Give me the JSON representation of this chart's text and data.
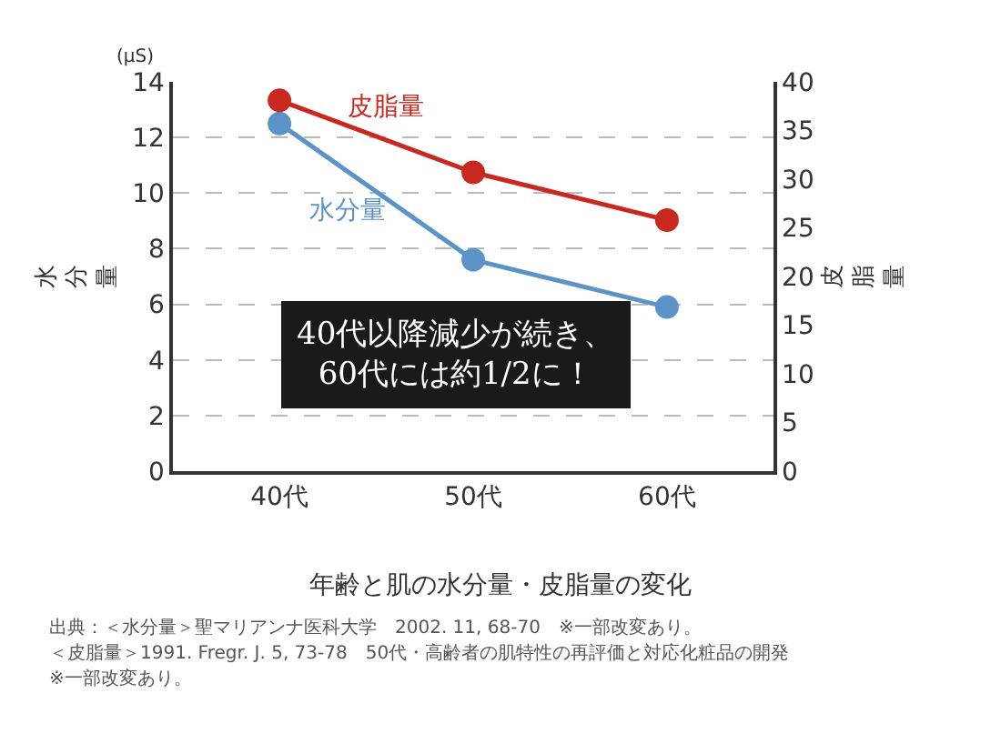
{
  "chart_data": {
    "type": "line",
    "title": "年齢と肌の水分量・皮脂量の変化",
    "ylabel": "水分量",
    "y2label": "皮脂量",
    "categories": [
      "40代",
      "50代",
      "60代"
    ],
    "series": [
      {
        "name": "皮脂量",
        "color": "#c8281e",
        "values": [
          38.1,
          30.7,
          25.8
        ],
        "axis": "y2"
      },
      {
        "name": "水分量",
        "color": "#5b93c9",
        "values": [
          12.5,
          7.6,
          5.9
        ]
      }
    ],
    "ylim": [
      0,
      14
    ],
    "yticks": [
      0,
      2,
      4,
      6,
      8,
      10,
      12,
      14
    ],
    "y2lim": [
      0,
      40
    ],
    "y2ticks": [
      0,
      5,
      10,
      15,
      20,
      25,
      30,
      35,
      40
    ],
    "grid": "y",
    "legend": false,
    "marker": "circle",
    "line_style": "solid",
    "annotations": [
      "(μS)",
      "40代以降減少が続き、\n60代には約1/2に！",
      "出典：＜水分量＞聖マリアンナ医科大学　2002. 11, 68-70　※一部改変あり。",
      "＜皮脂量＞1991. Fregr. J. 5, 73-78　50代・高齢者の肌特性の再評価と対応化粧品の開発",
      "※一部改変あり。"
    ]
  }
}
